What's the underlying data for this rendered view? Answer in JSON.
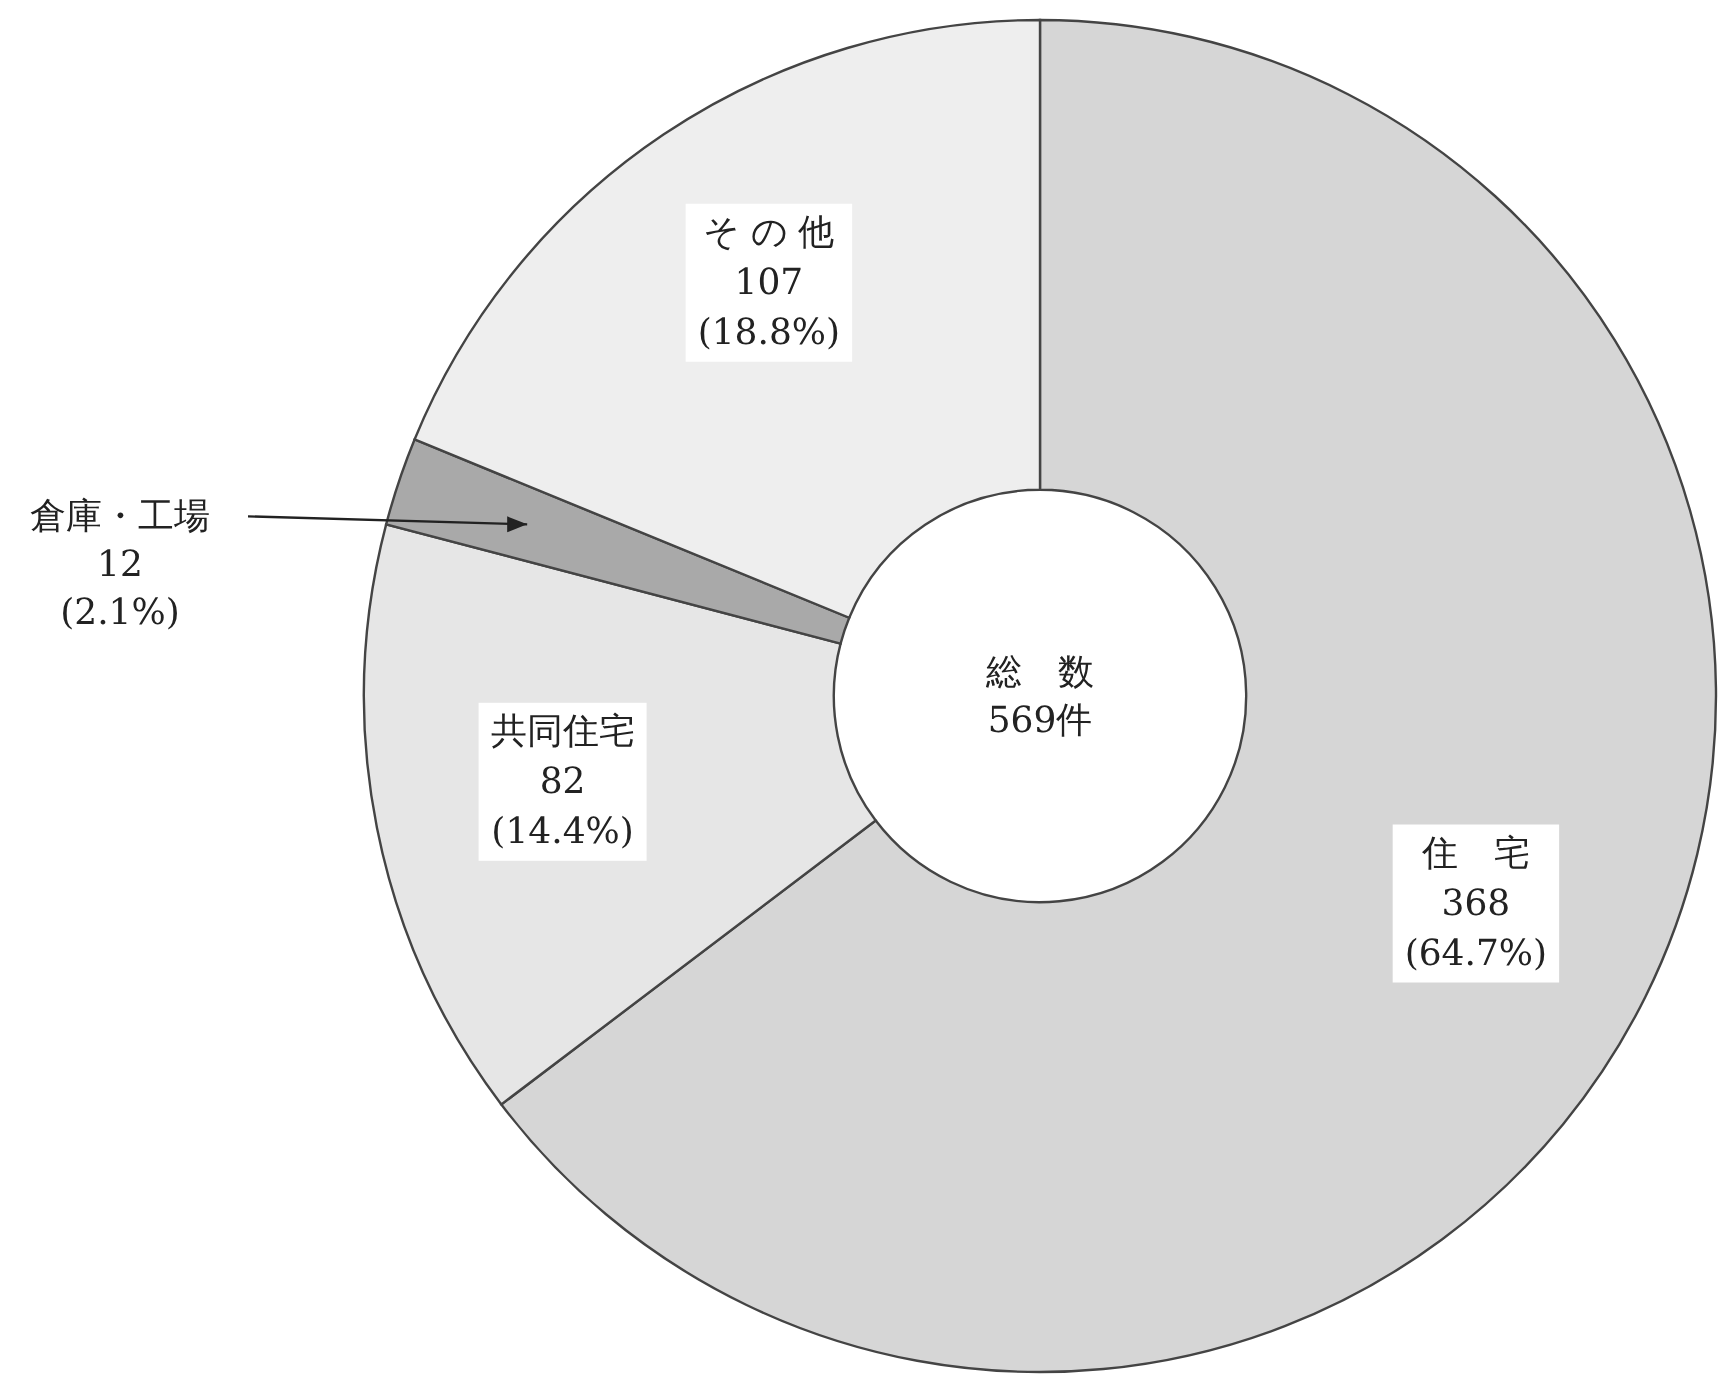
{
  "chart_data": {
    "type": "donut",
    "categories": [
      "住　宅",
      "共同住宅",
      "倉庫・工場",
      "そ の 他"
    ],
    "values": [
      368,
      82,
      12,
      107
    ],
    "value_labels": [
      "368\n(64.7%)",
      "82\n(14.4%)",
      "12\n(2.1%)",
      "107\n(18.8%)"
    ],
    "colors": [
      "#d6d6d6",
      "#e6e6e6",
      "#a9a9a9",
      "#eeeeee"
    ],
    "annotations": [
      "総　数\n569件"
    ]
  }
}
